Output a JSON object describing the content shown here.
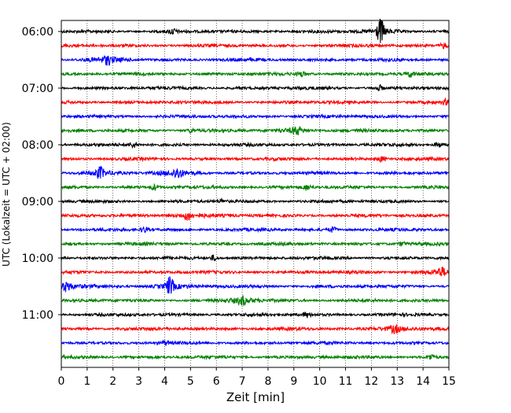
{
  "chart_data": {
    "type": "line",
    "title": "",
    "xlabel": "Zeit  [min]",
    "ylabel": "UTC (Lokalzeit = UTC + 02:00)",
    "xlim": [
      0,
      15
    ],
    "x_ticks": [
      0,
      1,
      2,
      3,
      4,
      5,
      6,
      7,
      8,
      9,
      10,
      11,
      12,
      13,
      14,
      15
    ],
    "y_tick_labels": [
      "06:00",
      "07:00",
      "08:00",
      "09:00",
      "10:00",
      "11:00"
    ],
    "trace_interval_minutes": 15,
    "start_time": "06:00",
    "grid": "vertical dotted at each minute",
    "trace_colors": [
      "#000000",
      "#ff0000",
      "#0000ff",
      "#008000"
    ],
    "traces": [
      {
        "start": "06:00",
        "color": "#000000",
        "events": [
          {
            "t": 12.35,
            "amp": 14
          },
          {
            "t": 4.3,
            "amp": 3
          }
        ]
      },
      {
        "start": "06:15",
        "color": "#ff0000",
        "events": [
          {
            "t": 14.8,
            "amp": 3
          }
        ]
      },
      {
        "start": "06:30",
        "color": "#0000ff",
        "events": [
          {
            "t": 1.8,
            "amp": 4
          }
        ]
      },
      {
        "start": "06:45",
        "color": "#008000",
        "events": [
          {
            "t": 9.3,
            "amp": 3
          },
          {
            "t": 13.5,
            "amp": 3
          }
        ]
      },
      {
        "start": "07:00",
        "color": "#000000",
        "events": [
          {
            "t": 12.3,
            "amp": 3
          }
        ]
      },
      {
        "start": "07:15",
        "color": "#ff0000",
        "events": [
          {
            "t": 14.9,
            "amp": 3
          }
        ]
      },
      {
        "start": "07:30",
        "color": "#0000ff",
        "events": []
      },
      {
        "start": "07:45",
        "color": "#008000",
        "events": [
          {
            "t": 9.1,
            "amp": 4
          },
          {
            "t": 5.0,
            "amp": 2
          }
        ]
      },
      {
        "start": "08:00",
        "color": "#000000",
        "events": [
          {
            "t": 2.8,
            "amp": 3
          },
          {
            "t": 14.6,
            "amp": 3
          }
        ]
      },
      {
        "start": "08:15",
        "color": "#ff0000",
        "events": [
          {
            "t": 12.4,
            "amp": 3
          }
        ]
      },
      {
        "start": "08:30",
        "color": "#0000ff",
        "events": [
          {
            "t": 1.5,
            "amp": 6
          },
          {
            "t": 4.5,
            "amp": 5
          }
        ]
      },
      {
        "start": "08:45",
        "color": "#008000",
        "events": [
          {
            "t": 3.6,
            "amp": 3
          },
          {
            "t": 9.5,
            "amp": 3
          }
        ]
      },
      {
        "start": "09:00",
        "color": "#000000",
        "events": [
          {
            "t": 6.2,
            "amp": 2
          }
        ]
      },
      {
        "start": "09:15",
        "color": "#ff0000",
        "events": [
          {
            "t": 4.9,
            "amp": 4
          }
        ]
      },
      {
        "start": "09:30",
        "color": "#0000ff",
        "events": [
          {
            "t": 3.2,
            "amp": 3
          },
          {
            "t": 10.5,
            "amp": 3
          }
        ]
      },
      {
        "start": "09:45",
        "color": "#008000",
        "events": [
          {
            "t": 13.2,
            "amp": 2
          }
        ]
      },
      {
        "start": "10:00",
        "color": "#000000",
        "events": [
          {
            "t": 5.9,
            "amp": 3
          }
        ]
      },
      {
        "start": "10:15",
        "color": "#ff0000",
        "events": [
          {
            "t": 14.7,
            "amp": 4
          }
        ]
      },
      {
        "start": "10:30",
        "color": "#0000ff",
        "events": [
          {
            "t": 4.2,
            "amp": 10
          },
          {
            "t": 0.2,
            "amp": 5
          }
        ]
      },
      {
        "start": "10:45",
        "color": "#008000",
        "events": [
          {
            "t": 7.0,
            "amp": 4
          }
        ]
      },
      {
        "start": "11:00",
        "color": "#000000",
        "events": [
          {
            "t": 9.5,
            "amp": 3
          }
        ]
      },
      {
        "start": "11:15",
        "color": "#ff0000",
        "events": [
          {
            "t": 12.9,
            "amp": 4
          }
        ]
      },
      {
        "start": "11:30",
        "color": "#0000ff",
        "events": [
          {
            "t": 4.0,
            "amp": 2
          }
        ]
      },
      {
        "start": "11:45",
        "color": "#008000",
        "events": [
          {
            "t": 14.3,
            "amp": 3
          }
        ]
      }
    ]
  }
}
